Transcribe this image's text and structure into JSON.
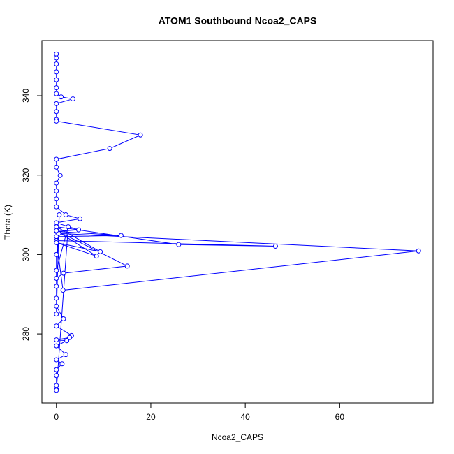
{
  "chart_data": {
    "type": "line",
    "title": "ATOM1 Southbound Ncoa2_CAPS",
    "x_label": "Ncoa2_CAPS",
    "y_label": "Theta (K)",
    "marker": "circle",
    "xlim": [
      -3.07,
      79.77
    ],
    "xticks": [
      0,
      20,
      40,
      60
    ],
    "ylim": [
      262.6,
      353.9
    ],
    "yticks": [
      280,
      300,
      320,
      340
    ],
    "x": [
      0,
      0,
      0,
      0,
      0,
      0,
      0,
      1,
      3.5,
      0,
      0,
      0,
      0,
      17.8,
      11.3,
      0,
      0,
      0.8,
      0,
      0,
      0,
      0,
      2,
      5,
      0,
      4.7,
      0,
      13.7,
      0,
      0.5,
      76.7,
      1.4,
      0,
      46.4,
      25.9,
      0,
      9.3,
      0,
      8.5,
      0,
      15,
      1.5,
      0,
      0,
      0,
      0,
      1.5,
      0,
      3.2,
      2.8,
      0,
      2.2,
      0,
      2,
      0,
      1.2,
      0,
      0,
      0,
      0,
      0,
      2.5,
      0,
      0.6,
      0,
      0
    ],
    "series": [
      {
        "color": "#0000ff",
        "values": [
          350.5,
          349.5,
          348,
          346,
          344,
          342,
          340.5,
          339.7,
          339.2,
          338,
          336,
          334,
          333.6,
          330.1,
          326.7,
          324,
          322,
          319.9,
          318,
          316,
          314,
          312,
          310,
          309,
          308,
          306.2,
          305.8,
          304.8,
          304.5,
          305.3,
          300.9,
          291,
          303.5,
          302.1,
          302.5,
          307,
          300.7,
          303,
          299.6,
          306,
          297.1,
          295.3,
          294,
          292,
          289,
          287,
          283.8,
          282,
          279.6,
          279.1,
          278.5,
          278.3,
          277,
          274.8,
          273.5,
          272.5,
          271,
          269.5,
          267,
          266,
          265.8,
          307,
          296,
          310,
          285,
          300
        ]
      }
    ]
  }
}
